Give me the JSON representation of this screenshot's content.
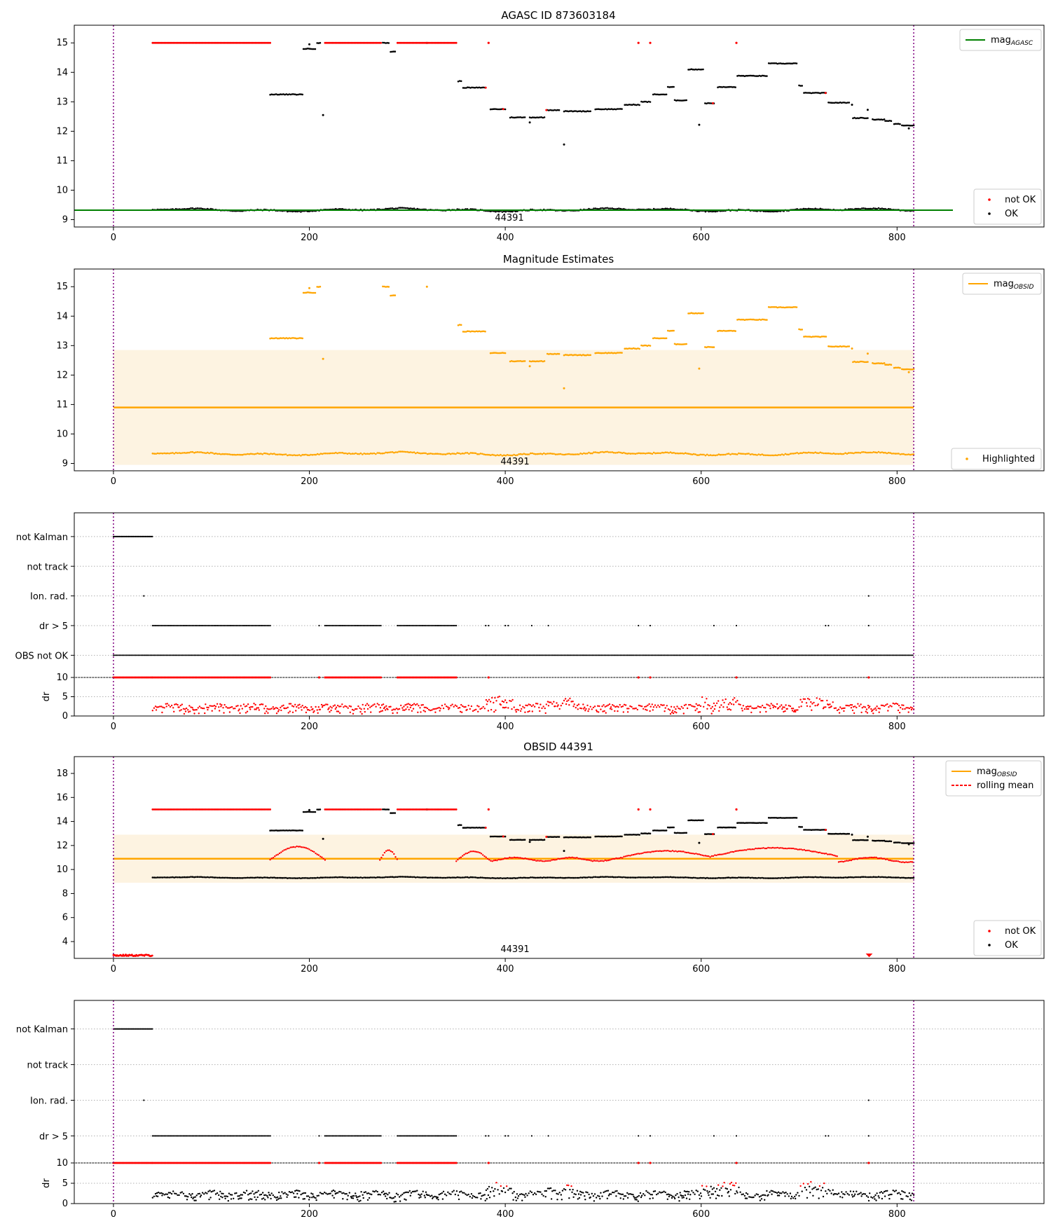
{
  "colors": {
    "ok": "#000000",
    "not_ok": "#ff0000",
    "agasc": "#008000",
    "obsid": "#ffa500",
    "band": "#fdf3e1",
    "rolling": "#ff0000",
    "vline": "#800080"
  },
  "chart_data": [
    {
      "type": "scatter",
      "title": "AGASC ID 873603184",
      "xlim": [
        -40,
        950
      ],
      "ylim": [
        8.75,
        15.6
      ],
      "xticks": [
        "0",
        "200",
        "400",
        "600",
        "800"
      ],
      "yticks": [
        "9",
        "10",
        "11",
        "12",
        "13",
        "14",
        "15"
      ],
      "annotation": "44391",
      "vlines": [
        0,
        817
      ],
      "hline_value": 9.32,
      "legend_lines": [
        {
          "name": "mag",
          "sub": "AGASC",
          "color": "agasc"
        }
      ],
      "legend_points": [
        {
          "name": "not OK",
          "color": "not_ok"
        },
        {
          "name": "OK",
          "color": "ok"
        }
      ]
    },
    {
      "type": "scatter",
      "title": "Magnitude Estimates",
      "xlim": [
        -40,
        950
      ],
      "ylim": [
        8.75,
        15.6
      ],
      "xticks": [
        "0",
        "200",
        "400",
        "600",
        "800"
      ],
      "yticks": [
        "9",
        "10",
        "11",
        "12",
        "13",
        "14",
        "15"
      ],
      "annotation": "44391",
      "vlines": [
        0,
        817
      ],
      "mean_value": 10.9,
      "band": [
        8.95,
        12.85
      ],
      "legend_lines": [
        {
          "name": "mag",
          "sub": "OBSID",
          "color": "obsid"
        }
      ],
      "legend_points": [
        {
          "name": "Highlighted",
          "color": "obsid"
        }
      ]
    },
    {
      "type": "scatter",
      "title": "",
      "xlim": [
        -40,
        950
      ],
      "categories": [
        "not Kalman",
        "not track",
        "Ion. rad.",
        "dr > 5",
        "OBS not OK"
      ],
      "vlines": [
        0,
        817
      ],
      "dr_ylim": [
        0,
        10
      ],
      "dr_yticks": [
        "0",
        "5",
        "10"
      ],
      "dr_ylabel": "dr",
      "xticks": [
        "0",
        "200",
        "400",
        "600",
        "800"
      ]
    },
    {
      "type": "scatter",
      "title": "OBSID 44391",
      "xlim": [
        -40,
        950
      ],
      "ylim": [
        2.6,
        19.4
      ],
      "xticks": [
        "0",
        "200",
        "400",
        "600",
        "800"
      ],
      "yticks": [
        "4",
        "6",
        "8",
        "10",
        "12",
        "14",
        "16",
        "18"
      ],
      "annotation": "44391",
      "vlines": [
        0,
        817
      ],
      "mean_value": 10.9,
      "band": [
        8.9,
        12.9
      ],
      "legend_lines": [
        {
          "name": "mag",
          "sub": "OBSID",
          "color": "obsid",
          "dash": false
        },
        {
          "name": "rolling mean",
          "sub": "",
          "color": "rolling",
          "dash": true
        }
      ],
      "legend_points": [
        {
          "name": "not OK",
          "color": "not_ok"
        },
        {
          "name": "OK",
          "color": "ok"
        }
      ]
    },
    {
      "type": "scatter",
      "title": "",
      "xlim": [
        -40,
        950
      ],
      "categories": [
        "not Kalman",
        "not track",
        "Ion. rad.",
        "dr > 5"
      ],
      "vlines": [
        0,
        817
      ],
      "dr_ylim": [
        0,
        10
      ],
      "dr_yticks": [
        "0",
        "5",
        "10"
      ],
      "dr_ylabel": "dr",
      "xticks": [
        "0",
        "200",
        "400",
        "600",
        "800"
      ]
    }
  ]
}
